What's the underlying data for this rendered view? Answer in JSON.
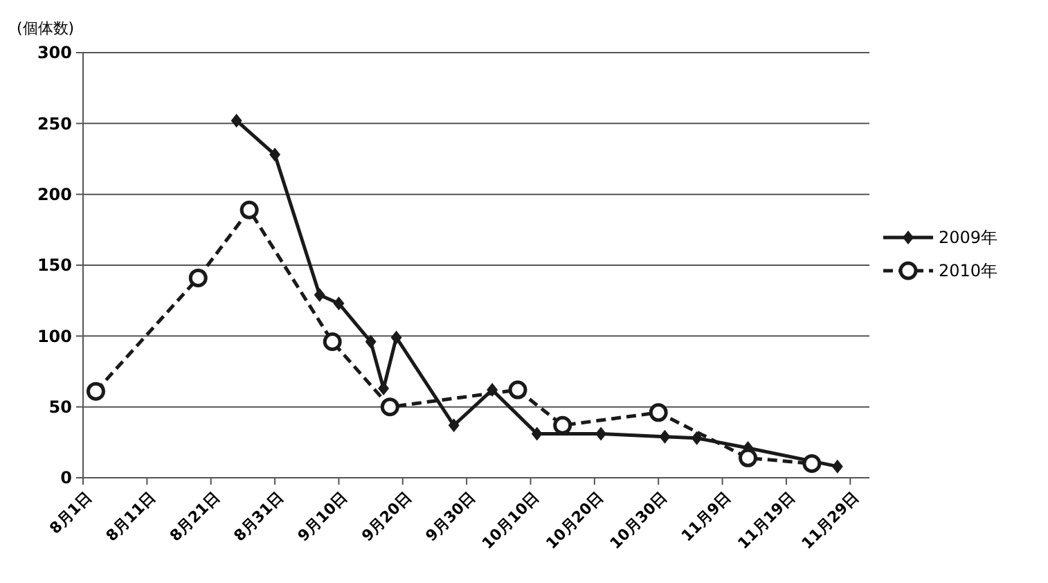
{
  "chart_data": {
    "type": "line",
    "ylabel": "(個体数)",
    "xlim": [
      "--08-01",
      "--12-02"
    ],
    "ylim": [
      0,
      300
    ],
    "yticks": [
      0,
      50,
      100,
      150,
      200,
      250,
      300
    ],
    "xticks": [
      {
        "value": "--08-01",
        "label": "8月1日"
      },
      {
        "value": "--08-11",
        "label": "8月11日"
      },
      {
        "value": "--08-21",
        "label": "8月21日"
      },
      {
        "value": "--08-31",
        "label": "8月31日"
      },
      {
        "value": "--09-10",
        "label": "9月10日"
      },
      {
        "value": "--09-20",
        "label": "9月20日"
      },
      {
        "value": "--09-30",
        "label": "9月30日"
      },
      {
        "value": "--10-10",
        "label": "10月10日"
      },
      {
        "value": "--10-20",
        "label": "10月20日"
      },
      {
        "value": "--10-30",
        "label": "10月30日"
      },
      {
        "value": "--11-09",
        "label": "11月9日"
      },
      {
        "value": "--11-19",
        "label": "11月19日"
      },
      {
        "value": "--11-29",
        "label": "11月29日"
      }
    ],
    "grid": "y",
    "legend": "right",
    "series": [
      {
        "name": "2009年",
        "color": "#1a1a1a",
        "marker": "diamond",
        "line_style": "solid",
        "x": [
          "--08-25",
          "--08-31",
          "--09-07",
          "--09-10",
          "--09-15",
          "--09-17",
          "--09-19",
          "--09-28",
          "--10-04",
          "--10-11",
          "--10-21",
          "--10-31",
          "--11-05",
          "--11-13",
          "--11-27"
        ],
        "values": [
          252,
          228,
          129,
          123,
          96,
          63,
          99,
          37,
          62,
          31,
          31,
          29,
          28,
          21,
          8
        ]
      },
      {
        "name": "2010年",
        "color": "#1a1a1a",
        "marker": "circle",
        "line_style": "dashed",
        "x": [
          "--08-03",
          "--08-19",
          "--08-27",
          "--09-09",
          "--09-18",
          "--10-08",
          "--10-15",
          "--10-30",
          "--11-13",
          "--11-23"
        ],
        "values": [
          61,
          141,
          189,
          96,
          50,
          62,
          37,
          46,
          14,
          10
        ]
      }
    ]
  }
}
